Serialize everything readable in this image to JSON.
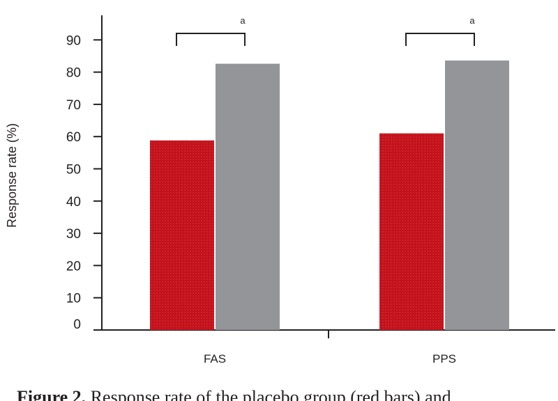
{
  "chart_data": {
    "type": "bar",
    "categories": [
      "FAS",
      "PPS"
    ],
    "series": [
      {
        "values": [
          58.8,
          61.0
        ],
        "color": "#c4111b"
      },
      {
        "values": [
          82.6,
          83.6
        ],
        "color": "#939598"
      }
    ],
    "ylabel": "Response rate (%)",
    "yticks": [
      0,
      10,
      20,
      30,
      40,
      50,
      60,
      70,
      80,
      90
    ],
    "ylim": [
      0,
      97
    ],
    "grid": false,
    "significance": [
      {
        "category": "FAS",
        "label": "a"
      },
      {
        "category": "PPS",
        "label": "a"
      }
    ]
  },
  "caption": {
    "prefix": "Figure 2.",
    "text": " Response rate of the placebo group (red bars) and"
  }
}
